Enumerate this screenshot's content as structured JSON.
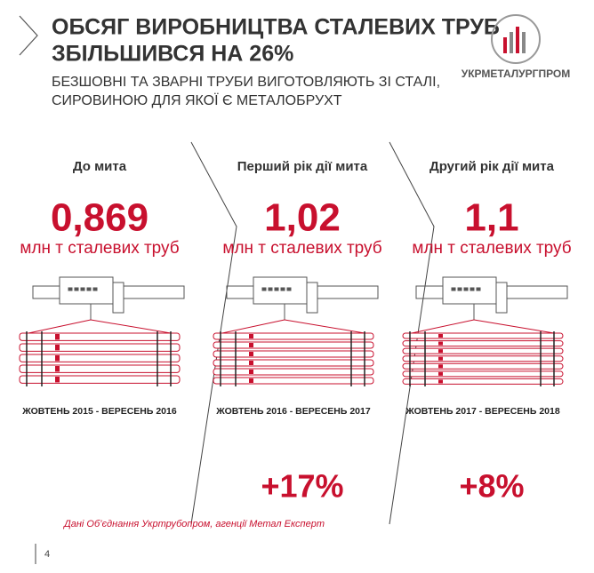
{
  "header": {
    "title_line1": "ОБСЯГ ВИРОБНИЦТВА СТАЛЕВИХ ТРУБ",
    "title_line2": "ЗБІЛЬШИВСЯ НА 26%",
    "subtitle_line1": "БЕЗШОВНІ ТА ЗВАРНІ ТРУБИ ВИГОТОВЛЯЮТЬ ЗІ СТАЛІ,",
    "subtitle_line2": "СИРОВИНОЮ ДЛЯ ЯКОЇ Є МЕТАЛОБРУХТ",
    "logo": "УКРМЕТАЛУРГПРОМ"
  },
  "panels": [
    {
      "heading": "До мита",
      "value": "0,869",
      "unit": "млн т сталевих труб",
      "period": "ЖОВТЕНЬ 2015 - ВЕРЕСЕНЬ 2016"
    },
    {
      "heading": "Перший рік дії мита",
      "value": "1,02",
      "unit": "млн т сталевих труб",
      "period": "ЖОВТЕНЬ 2016 - ВЕРЕСЕНЬ 2017",
      "change": "+17%"
    },
    {
      "heading": "Другий рік дії мита",
      "value": "1,1",
      "unit": "млн т сталевих труб",
      "period": "ЖОВТЕНЬ 2017 - ВЕРЕСЕНЬ 2018",
      "change": "+8%"
    }
  ],
  "footer": {
    "source": "Дані Об’єднання Укртрубопром, агенції Метал Експерт",
    "page": "4"
  }
}
